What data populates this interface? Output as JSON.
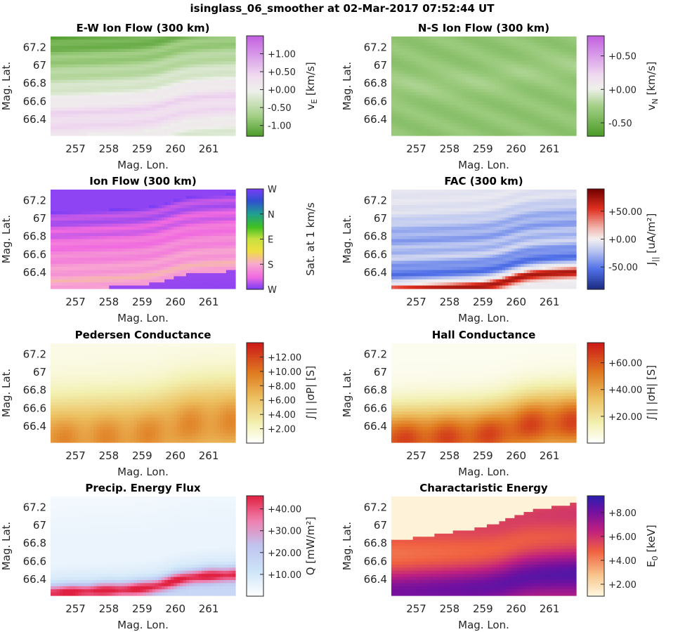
{
  "figure": {
    "title": "isinglass_06_smoother at 02-Mar-2017 07:52:44 UT",
    "xlabel": "Mag. Lon.",
    "ylabel": "Mag. Lat."
  },
  "chart_data": [
    {
      "type": "heatmap",
      "title": "E-W Ion Flow (300 km)",
      "xlabel": "Mag. Lon.",
      "ylabel": "Mag. Lat.",
      "xlim": [
        256.25,
        261.8
      ],
      "ylim": [
        66.22,
        67.32
      ],
      "xticks": [
        257,
        258,
        259,
        260,
        261
      ],
      "xtick_labels": [
        "257",
        "258",
        "259",
        "260",
        "261"
      ],
      "yticks": [
        66.4,
        66.6,
        66.8,
        67.0,
        67.2
      ],
      "ytick_labels": [
        "66.4",
        "66.6",
        "66.8",
        "67",
        "67.2"
      ],
      "colorbar": {
        "label_main": "v",
        "label_sub": "E",
        "label_rest": " [km/s]",
        "range": [
          -1.3,
          1.5
        ],
        "ticks": [
          -1.0,
          -0.5,
          0.0,
          0.5,
          1.0
        ],
        "tick_labels": [
          "-1.00",
          "-0.50",
          "+0.00",
          "+0.50",
          "+1.00"
        ],
        "stops": [
          [
            0,
            "#4a9a26"
          ],
          [
            0.2,
            "#a3cf86"
          ],
          [
            0.45,
            "#eef0ea"
          ],
          [
            0.6,
            "#f0dcf0"
          ],
          [
            1,
            "#c25fe0"
          ]
        ]
      },
      "field": "ew"
    },
    {
      "type": "heatmap",
      "title": "N-S Ion Flow (300 km)",
      "xlabel": "Mag. Lon.",
      "ylabel": "Mag. Lat.",
      "xlim": [
        256.25,
        261.8
      ],
      "ylim": [
        66.22,
        67.32
      ],
      "xticks": [
        257,
        258,
        259,
        260,
        261
      ],
      "xtick_labels": [
        "257",
        "258",
        "259",
        "260",
        "261"
      ],
      "yticks": [
        66.4,
        66.6,
        66.8,
        67.0,
        67.2
      ],
      "ytick_labels": [
        "66.4",
        "66.6",
        "66.8",
        "67",
        "67.2"
      ],
      "colorbar": {
        "label_main": "v",
        "label_sub": "N",
        "label_rest": " [km/s]",
        "range": [
          -0.7,
          0.8
        ],
        "ticks": [
          -0.5,
          0.0,
          0.5
        ],
        "tick_labels": [
          "-0.50",
          "+0.00",
          "+0.50"
        ],
        "stops": [
          [
            0,
            "#4a9a26"
          ],
          [
            0.3,
            "#a3cf86"
          ],
          [
            0.47,
            "#eef0ea"
          ],
          [
            0.6,
            "#f0dcf0"
          ],
          [
            1,
            "#c25fe0"
          ]
        ]
      },
      "field": "ns"
    },
    {
      "type": "heatmap",
      "title": "Ion Flow (300 km)",
      "xlabel": "Mag. Lon.",
      "ylabel": "Mag. Lat.",
      "xlim": [
        256.25,
        261.8
      ],
      "ylim": [
        66.22,
        67.32
      ],
      "xticks": [
        257,
        258,
        259,
        260,
        261
      ],
      "xtick_labels": [
        "257",
        "258",
        "259",
        "260",
        "261"
      ],
      "yticks": [
        66.4,
        66.6,
        66.8,
        67.0,
        67.2
      ],
      "ytick_labels": [
        "66.4",
        "66.6",
        "66.8",
        "67",
        "67.2"
      ],
      "colorbar": {
        "label_main": "Sat. at 1 km/s",
        "label_sub": "",
        "label_rest": "",
        "range": [
          0,
          4
        ],
        "ticks": [
          0,
          1,
          2,
          3,
          4
        ],
        "tick_labels": [
          "W",
          "S",
          "E",
          "N",
          "W"
        ],
        "stops": [
          [
            0,
            "#7a3cf5"
          ],
          [
            0.12,
            "#f06ae0"
          ],
          [
            0.25,
            "#f8a8d0"
          ],
          [
            0.38,
            "#f0e040"
          ],
          [
            0.5,
            "#c8e040"
          ],
          [
            0.62,
            "#40c020"
          ],
          [
            0.75,
            "#1fa090"
          ],
          [
            0.88,
            "#3050d0"
          ],
          [
            1,
            "#7a3cf5"
          ]
        ]
      },
      "field": "dir"
    },
    {
      "type": "heatmap",
      "title": "FAC (300 km)",
      "xlabel": "Mag. Lon.",
      "ylabel": "Mag. Lat.",
      "xlim": [
        256.25,
        261.8
      ],
      "ylim": [
        66.22,
        67.32
      ],
      "xticks": [
        257,
        258,
        259,
        260,
        261
      ],
      "xtick_labels": [
        "257",
        "258",
        "259",
        "260",
        "261"
      ],
      "yticks": [
        66.4,
        66.6,
        66.8,
        67.0,
        67.2
      ],
      "ytick_labels": [
        "66.4",
        "66.6",
        "66.8",
        "67",
        "67.2"
      ],
      "colorbar": {
        "label_main": "J",
        "label_sub": "||",
        "label_rest": " [uA/m²]",
        "range": [
          -90,
          90
        ],
        "ticks": [
          -50,
          0,
          50
        ],
        "tick_labels": [
          "-50.00",
          "+0.00",
          "+50.00"
        ],
        "stops": [
          [
            0,
            "#1b2a80"
          ],
          [
            0.2,
            "#5070e8"
          ],
          [
            0.38,
            "#b8c4f0"
          ],
          [
            0.5,
            "#f4f0f0"
          ],
          [
            0.62,
            "#f0b0a8"
          ],
          [
            0.8,
            "#e03020"
          ],
          [
            1,
            "#700000"
          ]
        ]
      },
      "field": "fac"
    },
    {
      "type": "heatmap",
      "title": "Pedersen Conductance",
      "xlabel": "Mag. Lon.",
      "ylabel": "Mag. Lat.",
      "xlim": [
        256.25,
        261.8
      ],
      "ylim": [
        66.22,
        67.32
      ],
      "xticks": [
        257,
        258,
        259,
        260,
        261
      ],
      "xtick_labels": [
        "257",
        "258",
        "259",
        "260",
        "261"
      ],
      "yticks": [
        66.4,
        66.6,
        66.8,
        67.0,
        67.2
      ],
      "ytick_labels": [
        "66.4",
        "66.6",
        "66.8",
        "67",
        "67.2"
      ],
      "colorbar": {
        "label_main": "∫|| |σP| [S]",
        "label_sub": "",
        "label_rest": "",
        "range": [
          0,
          14
        ],
        "ticks": [
          2,
          4,
          6,
          8,
          10,
          12
        ],
        "tick_labels": [
          "+2.00",
          "+4.00",
          "+6.00",
          "+8.00",
          "+10.00",
          "+12.00"
        ],
        "stops": [
          [
            0,
            "#ffffff"
          ],
          [
            0.2,
            "#f2f0b0"
          ],
          [
            0.45,
            "#ecc060"
          ],
          [
            0.7,
            "#e07a20"
          ],
          [
            1,
            "#cc1818"
          ]
        ]
      },
      "field": "ped"
    },
    {
      "type": "heatmap",
      "title": "Hall Conductance",
      "xlabel": "Mag. Lon.",
      "ylabel": "Mag. Lat.",
      "xlim": [
        256.25,
        261.8
      ],
      "ylim": [
        66.22,
        67.32
      ],
      "xticks": [
        257,
        258,
        259,
        260,
        261
      ],
      "xtick_labels": [
        "257",
        "258",
        "259",
        "260",
        "261"
      ],
      "yticks": [
        66.4,
        66.6,
        66.8,
        67.0,
        67.2
      ],
      "ytick_labels": [
        "66.4",
        "66.6",
        "66.8",
        "67",
        "67.2"
      ],
      "colorbar": {
        "label_main": "∫|| |σH| [S]",
        "label_sub": "",
        "label_rest": "",
        "range": [
          0,
          75
        ],
        "ticks": [
          20,
          40,
          60
        ],
        "tick_labels": [
          "+20.00",
          "+40.00",
          "+60.00"
        ],
        "stops": [
          [
            0,
            "#ffffff"
          ],
          [
            0.2,
            "#f2f0b0"
          ],
          [
            0.45,
            "#ecc060"
          ],
          [
            0.7,
            "#e07a20"
          ],
          [
            1,
            "#cc1818"
          ]
        ]
      },
      "field": "hall"
    },
    {
      "type": "heatmap",
      "title": "Precip. Energy Flux",
      "xlabel": "Mag. Lon.",
      "ylabel": "Mag. Lat.",
      "xlim": [
        256.25,
        261.8
      ],
      "ylim": [
        66.22,
        67.32
      ],
      "xticks": [
        257,
        258,
        259,
        260,
        261
      ],
      "xtick_labels": [
        "257",
        "258",
        "259",
        "260",
        "261"
      ],
      "yticks": [
        66.4,
        66.6,
        66.8,
        67.0,
        67.2
      ],
      "ytick_labels": [
        "66.4",
        "66.6",
        "66.8",
        "67",
        "67.2"
      ],
      "colorbar": {
        "label_main": "Q [mW/m²]",
        "label_sub": "",
        "label_rest": "",
        "range": [
          0,
          46
        ],
        "ticks": [
          10,
          20,
          30,
          40
        ],
        "tick_labels": [
          "+10.00",
          "+20.00",
          "+30.00",
          "+40.00"
        ],
        "stops": [
          [
            0,
            "#ffffff"
          ],
          [
            0.25,
            "#cde4f8"
          ],
          [
            0.5,
            "#c0c4f0"
          ],
          [
            0.75,
            "#f080b0"
          ],
          [
            1,
            "#e02040"
          ]
        ]
      },
      "field": "flux"
    },
    {
      "type": "heatmap",
      "title": "Charactaristic Energy",
      "xlabel": "Mag. Lon.",
      "ylabel": "Mag. Lat.",
      "xlim": [
        256.25,
        261.8
      ],
      "ylim": [
        66.22,
        67.32
      ],
      "xticks": [
        257,
        258,
        259,
        260,
        261
      ],
      "xtick_labels": [
        "257",
        "258",
        "259",
        "260",
        "261"
      ],
      "yticks": [
        66.4,
        66.6,
        66.8,
        67.0,
        67.2
      ],
      "ytick_labels": [
        "66.4",
        "66.6",
        "66.8",
        "67",
        "67.2"
      ],
      "colorbar": {
        "label_main": "E",
        "label_sub": "0",
        "label_rest": " [keV]",
        "range": [
          1,
          9.4
        ],
        "ticks": [
          2,
          4,
          6,
          8
        ],
        "tick_labels": [
          "+2.00",
          "+4.00",
          "+6.00",
          "+8.00"
        ],
        "stops": [
          [
            0,
            "#fff8e0"
          ],
          [
            0.2,
            "#f8c890"
          ],
          [
            0.45,
            "#f06040"
          ],
          [
            0.65,
            "#c02080"
          ],
          [
            0.85,
            "#7010a0"
          ],
          [
            1,
            "#2820b0"
          ]
        ]
      },
      "field": "e0"
    }
  ]
}
